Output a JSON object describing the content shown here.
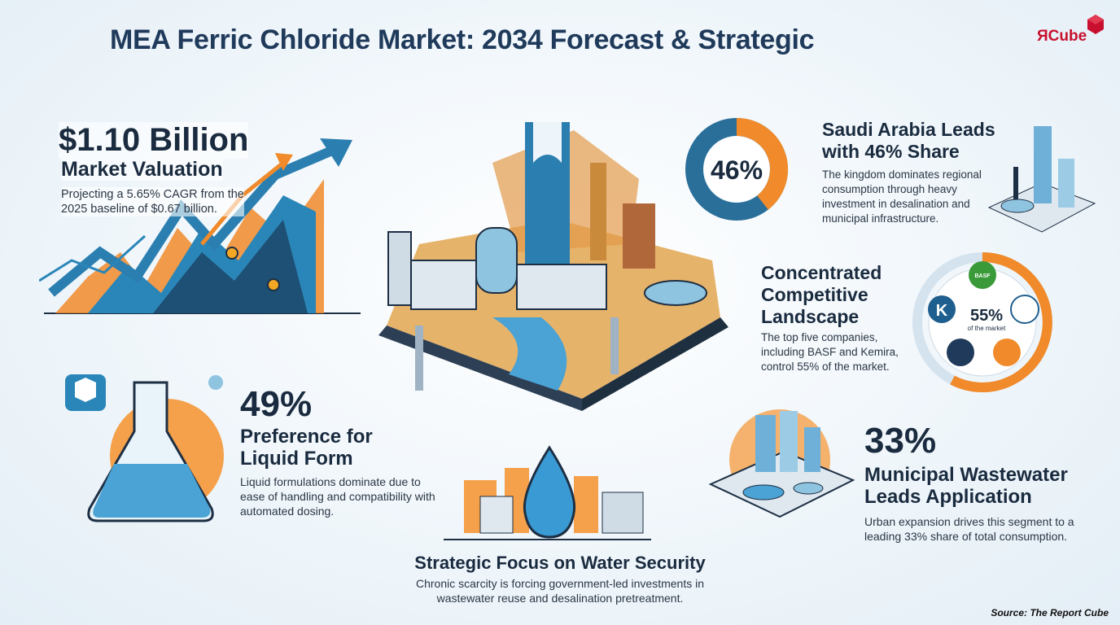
{
  "header": {
    "title": "MEA Ferric Chloride Market: 2034 Forecast & Strategic",
    "logo": "ЯCube"
  },
  "valuation": {
    "headline": "$1.10 Billion",
    "subhead": "Market Valuation",
    "body": "Projecting a 5.65% CAGR from the 2025 baseline of $0.67 billion."
  },
  "saudi": {
    "badge": "46%",
    "heading": "Saudi Arabia Leads with 46% Share",
    "body": "The kingdom dominates regional consumption through heavy investment in desalination and municipal infrastructure."
  },
  "competition": {
    "heading": "Concentrated Competitive Landscape",
    "body": "The top five companies, including BASF and Kemira, control 55% of the market.",
    "ring_value": "55%",
    "ring_caption": "of the market",
    "logos": [
      "BASF",
      "K"
    ]
  },
  "liquid": {
    "headline": "49%",
    "subhead": "Preference for Liquid Form",
    "body": "Liquid formulations dominate due to ease of handling and compatibility with automated dosing."
  },
  "municipal": {
    "headline": "33%",
    "subhead": "Municipal Wastewater Leads Application",
    "body": "Urban expansion drives this segment to a leading 33% share of total consumption."
  },
  "water_security": {
    "heading": "Strategic Focus on Water Security",
    "body": "Chronic scarcity is forcing government-led investments in wastewater reuse and desalination pretreatment."
  },
  "footer": {
    "source": "Source: The Report Cube"
  }
}
